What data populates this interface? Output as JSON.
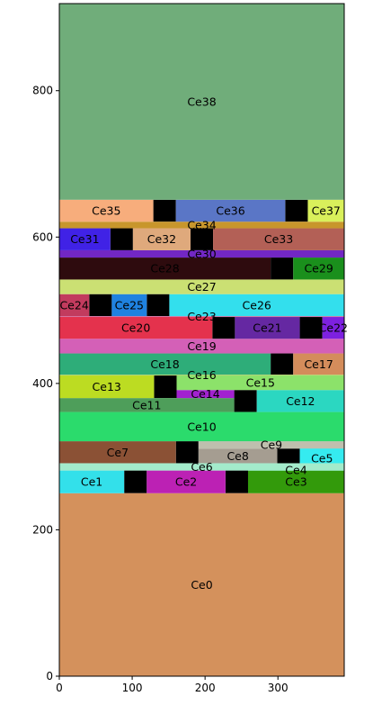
{
  "chart_data": {
    "type": "treemap",
    "title": "",
    "xlabel": "",
    "ylabel": "",
    "xlim": [
      0,
      391
    ],
    "ylim": [
      0,
      919
    ],
    "x_ticks": [
      0,
      100,
      200,
      300
    ],
    "y_ticks": [
      0,
      200,
      400,
      600,
      800
    ],
    "cells": [
      {
        "label": "Ce0",
        "x0": 0,
        "x1": 391,
        "y0": 0,
        "y1": 250,
        "color": "#D4915C"
      },
      {
        "label": "Ce1",
        "x0": 0,
        "x1": 89,
        "y0": 250,
        "y1": 281,
        "color": "#33E0EA"
      },
      {
        "label": "Ce2",
        "x0": 120,
        "x1": 228,
        "y0": 250,
        "y1": 281,
        "color": "#BC21B4"
      },
      {
        "label": "Ce3",
        "x0": 259,
        "x1": 391,
        "y0": 250,
        "y1": 281,
        "color": "#339A0B"
      },
      {
        "label": "Ce4",
        "x0": 259,
        "x1": 391,
        "y0": 281,
        "y1": 282,
        "color": "#66E09A"
      },
      {
        "label": "Ce5",
        "x0": 330,
        "x1": 391,
        "y0": 282,
        "y1": 313,
        "color": "#35EBF0"
      },
      {
        "label": "Ce6",
        "x0": 0,
        "x1": 391,
        "y0": 281,
        "y1": 291,
        "color": "#A3EBCB"
      },
      {
        "label": "Ce7",
        "x0": 0,
        "x1": 160,
        "y0": 291,
        "y1": 321,
        "color": "#8B5135"
      },
      {
        "label": "Ce8",
        "x0": 191,
        "x1": 299,
        "y0": 291,
        "y1": 311,
        "color": "#A59D91"
      },
      {
        "label": "Ce9",
        "x0": 191,
        "x1": 391,
        "y0": 311,
        "y1": 321,
        "color": "#BFBFAE"
      },
      {
        "label": "Ce10",
        "x0": 0,
        "x1": 391,
        "y0": 321,
        "y1": 361,
        "color": "#2BDB6C"
      },
      {
        "label": "Ce11",
        "x0": 0,
        "x1": 240,
        "y0": 361,
        "y1": 380,
        "color": "#4E9E5A"
      },
      {
        "label": "Ce12",
        "x0": 271,
        "x1": 391,
        "y0": 361,
        "y1": 391,
        "color": "#2BD7C1"
      },
      {
        "label": "Ce13",
        "x0": 0,
        "x1": 130,
        "y0": 380,
        "y1": 411,
        "color": "#BCDC22"
      },
      {
        "label": "Ce14",
        "x0": 161,
        "x1": 240,
        "y0": 380,
        "y1": 391,
        "color": "#A221D0"
      },
      {
        "label": "Ce15",
        "x0": 161,
        "x1": 391,
        "y0": 391,
        "y1": 411,
        "color": "#8CE26A"
      },
      {
        "label": "Ce16",
        "x0": 0,
        "x1": 391,
        "y0": 411,
        "y1": 412,
        "color": "#B7D76F"
      },
      {
        "label": "Ce17",
        "x0": 321,
        "x1": 391,
        "y0": 412,
        "y1": 441,
        "color": "#D48C5B"
      },
      {
        "label": "Ce18",
        "x0": 0,
        "x1": 290,
        "y0": 412,
        "y1": 441,
        "color": "#2EAD79"
      },
      {
        "label": "Ce19",
        "x0": 0,
        "x1": 391,
        "y0": 441,
        "y1": 461,
        "color": "#D460B7"
      },
      {
        "label": "Ce20",
        "x0": 0,
        "x1": 210,
        "y0": 461,
        "y1": 491,
        "color": "#E4324D"
      },
      {
        "label": "Ce21",
        "x0": 241,
        "x1": 330,
        "y0": 461,
        "y1": 491,
        "color": "#6528A2"
      },
      {
        "label": "Ce22",
        "x0": 361,
        "x1": 391,
        "y0": 461,
        "y1": 491,
        "color": "#7D21E0"
      },
      {
        "label": "Ce23",
        "x0": 0,
        "x1": 391,
        "y0": 491,
        "y1": 492,
        "color": "#D46FA0"
      },
      {
        "label": "Ce24",
        "x0": 0,
        "x1": 41,
        "y0": 492,
        "y1": 522,
        "color": "#C23B5E"
      },
      {
        "label": "Ce25",
        "x0": 72,
        "x1": 120,
        "y0": 492,
        "y1": 522,
        "color": "#1F82E0"
      },
      {
        "label": "Ce26",
        "x0": 151,
        "x1": 391,
        "y0": 492,
        "y1": 522,
        "color": "#33DFED"
      },
      {
        "label": "Ce27",
        "x0": 0,
        "x1": 391,
        "y0": 522,
        "y1": 542,
        "color": "#CBE073"
      },
      {
        "label": "Ce28",
        "x0": 0,
        "x1": 290,
        "y0": 542,
        "y1": 572,
        "color": "#2E0B0E"
      },
      {
        "label": "Ce29",
        "x0": 321,
        "x1": 391,
        "y0": 542,
        "y1": 572,
        "color": "#1A8F1C"
      },
      {
        "label": "Ce30",
        "x0": 0,
        "x1": 391,
        "y0": 572,
        "y1": 582,
        "color": "#7227C4"
      },
      {
        "label": "Ce31",
        "x0": 0,
        "x1": 70,
        "y0": 582,
        "y1": 612,
        "color": "#4022E6"
      },
      {
        "label": "Ce32",
        "x0": 101,
        "x1": 180,
        "y0": 582,
        "y1": 612,
        "color": "#DFA97C"
      },
      {
        "label": "Ce33",
        "x0": 211,
        "x1": 391,
        "y0": 582,
        "y1": 612,
        "color": "#B36056"
      },
      {
        "label": "Ce34",
        "x0": 0,
        "x1": 391,
        "y0": 612,
        "y1": 621,
        "color": "#C8962C"
      },
      {
        "label": "Ce35",
        "x0": 0,
        "x1": 129,
        "y0": 621,
        "y1": 651,
        "color": "#F7AD7C"
      },
      {
        "label": "Ce36",
        "x0": 160,
        "x1": 310,
        "y0": 621,
        "y1": 651,
        "color": "#5A76C6"
      },
      {
        "label": "Ce37",
        "x0": 341,
        "x1": 391,
        "y0": 621,
        "y1": 651,
        "color": "#D9F05B"
      },
      {
        "label": "Ce38",
        "x0": 0,
        "x1": 391,
        "y0": 651,
        "y1": 919,
        "color": "#70AD7A"
      }
    ],
    "gaps": [
      {
        "x0": 89,
        "x1": 120,
        "y0": 250,
        "y1": 281
      },
      {
        "x0": 228,
        "x1": 259,
        "y0": 250,
        "y1": 281
      },
      {
        "x0": 299,
        "x1": 330,
        "y0": 282,
        "y1": 311
      },
      {
        "x0": 160,
        "x1": 191,
        "y0": 291,
        "y1": 321
      },
      {
        "x0": 240,
        "x1": 271,
        "y0": 361,
        "y1": 391
      },
      {
        "x0": 130,
        "x1": 161,
        "y0": 380,
        "y1": 411
      },
      {
        "x0": 290,
        "x1": 321,
        "y0": 412,
        "y1": 441
      },
      {
        "x0": 210,
        "x1": 241,
        "y0": 461,
        "y1": 491
      },
      {
        "x0": 330,
        "x1": 361,
        "y0": 461,
        "y1": 491
      },
      {
        "x0": 41,
        "x1": 72,
        "y0": 492,
        "y1": 522
      },
      {
        "x0": 120,
        "x1": 151,
        "y0": 492,
        "y1": 522
      },
      {
        "x0": 290,
        "x1": 321,
        "y0": 542,
        "y1": 572
      },
      {
        "x0": 70,
        "x1": 101,
        "y0": 582,
        "y1": 612
      },
      {
        "x0": 180,
        "x1": 211,
        "y0": 582,
        "y1": 612
      },
      {
        "x0": 129,
        "x1": 160,
        "y0": 621,
        "y1": 651
      },
      {
        "x0": 310,
        "x1": 341,
        "y0": 621,
        "y1": 651
      }
    ],
    "gap_color": "#000000",
    "grid": false,
    "legend": "none"
  }
}
